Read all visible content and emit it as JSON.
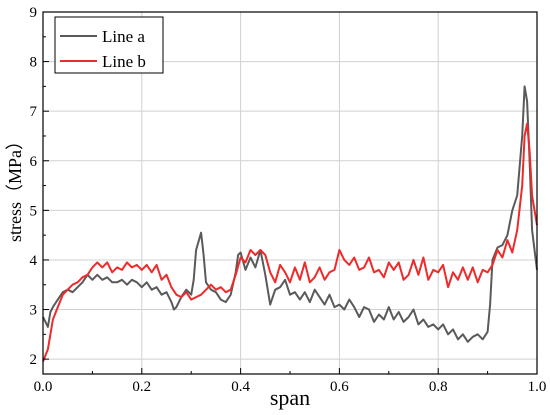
{
  "chart_data": {
    "type": "line",
    "xlabel": "span",
    "ylabel": "stress（MPa）",
    "xlim": [
      0.0,
      1.0
    ],
    "ylim": [
      1.7,
      9.0
    ],
    "x_ticks": [
      "0.0",
      "0.2",
      "0.4",
      "0.6",
      "0.8",
      "1.0"
    ],
    "y_ticks": [
      "2",
      "3",
      "4",
      "5",
      "6",
      "7",
      "8",
      "9"
    ],
    "grid": true,
    "legend_position": "top-left",
    "series": [
      {
        "name": "Line a",
        "color": "#5a5a5a",
        "points": [
          [
            0.0,
            2.85
          ],
          [
            0.005,
            2.75
          ],
          [
            0.01,
            2.65
          ],
          [
            0.015,
            2.95
          ],
          [
            0.02,
            3.05
          ],
          [
            0.03,
            3.2
          ],
          [
            0.04,
            3.35
          ],
          [
            0.05,
            3.4
          ],
          [
            0.06,
            3.35
          ],
          [
            0.07,
            3.45
          ],
          [
            0.08,
            3.55
          ],
          [
            0.09,
            3.7
          ],
          [
            0.1,
            3.6
          ],
          [
            0.11,
            3.7
          ],
          [
            0.12,
            3.6
          ],
          [
            0.13,
            3.65
          ],
          [
            0.14,
            3.55
          ],
          [
            0.15,
            3.55
          ],
          [
            0.16,
            3.6
          ],
          [
            0.17,
            3.5
          ],
          [
            0.18,
            3.6
          ],
          [
            0.19,
            3.55
          ],
          [
            0.2,
            3.45
          ],
          [
            0.21,
            3.55
          ],
          [
            0.22,
            3.4
          ],
          [
            0.23,
            3.45
          ],
          [
            0.24,
            3.3
          ],
          [
            0.25,
            3.35
          ],
          [
            0.26,
            3.15
          ],
          [
            0.265,
            3.0
          ],
          [
            0.27,
            3.05
          ],
          [
            0.28,
            3.25
          ],
          [
            0.29,
            3.4
          ],
          [
            0.3,
            3.3
          ],
          [
            0.305,
            3.6
          ],
          [
            0.31,
            4.2
          ],
          [
            0.32,
            4.55
          ],
          [
            0.325,
            4.1
          ],
          [
            0.33,
            3.55
          ],
          [
            0.34,
            3.4
          ],
          [
            0.35,
            3.35
          ],
          [
            0.36,
            3.2
          ],
          [
            0.37,
            3.15
          ],
          [
            0.38,
            3.3
          ],
          [
            0.39,
            3.75
          ],
          [
            0.395,
            4.1
          ],
          [
            0.4,
            4.15
          ],
          [
            0.41,
            3.8
          ],
          [
            0.42,
            4.05
          ],
          [
            0.43,
            3.85
          ],
          [
            0.44,
            4.2
          ],
          [
            0.45,
            3.7
          ],
          [
            0.46,
            3.1
          ],
          [
            0.47,
            3.4
          ],
          [
            0.48,
            3.45
          ],
          [
            0.49,
            3.6
          ],
          [
            0.5,
            3.3
          ],
          [
            0.51,
            3.35
          ],
          [
            0.52,
            3.2
          ],
          [
            0.53,
            3.35
          ],
          [
            0.54,
            3.15
          ],
          [
            0.55,
            3.4
          ],
          [
            0.56,
            3.25
          ],
          [
            0.57,
            3.1
          ],
          [
            0.58,
            3.3
          ],
          [
            0.59,
            3.05
          ],
          [
            0.6,
            3.1
          ],
          [
            0.61,
            3.0
          ],
          [
            0.62,
            3.2
          ],
          [
            0.63,
            3.05
          ],
          [
            0.64,
            2.85
          ],
          [
            0.65,
            3.05
          ],
          [
            0.66,
            3.0
          ],
          [
            0.67,
            2.75
          ],
          [
            0.68,
            2.9
          ],
          [
            0.69,
            2.8
          ],
          [
            0.7,
            3.05
          ],
          [
            0.71,
            2.8
          ],
          [
            0.72,
            2.95
          ],
          [
            0.73,
            2.75
          ],
          [
            0.74,
            2.85
          ],
          [
            0.75,
            3.0
          ],
          [
            0.76,
            2.7
          ],
          [
            0.77,
            2.8
          ],
          [
            0.78,
            2.65
          ],
          [
            0.79,
            2.7
          ],
          [
            0.8,
            2.6
          ],
          [
            0.81,
            2.7
          ],
          [
            0.82,
            2.5
          ],
          [
            0.83,
            2.6
          ],
          [
            0.84,
            2.4
          ],
          [
            0.85,
            2.5
          ],
          [
            0.86,
            2.35
          ],
          [
            0.87,
            2.45
          ],
          [
            0.88,
            2.5
          ],
          [
            0.89,
            2.4
          ],
          [
            0.9,
            2.55
          ],
          [
            0.905,
            3.1
          ],
          [
            0.91,
            4.0
          ],
          [
            0.92,
            4.25
          ],
          [
            0.93,
            4.3
          ],
          [
            0.94,
            4.5
          ],
          [
            0.95,
            5.0
          ],
          [
            0.96,
            5.3
          ],
          [
            0.97,
            6.5
          ],
          [
            0.975,
            7.5
          ],
          [
            0.98,
            7.2
          ],
          [
            0.985,
            6.0
          ],
          [
            0.99,
            4.6
          ],
          [
            1.0,
            3.8
          ]
        ]
      },
      {
        "name": "Line b",
        "color": "#ee2a2a",
        "points": [
          [
            0.0,
            1.95
          ],
          [
            0.01,
            2.2
          ],
          [
            0.02,
            2.8
          ],
          [
            0.03,
            3.05
          ],
          [
            0.04,
            3.3
          ],
          [
            0.05,
            3.4
          ],
          [
            0.06,
            3.5
          ],
          [
            0.07,
            3.55
          ],
          [
            0.08,
            3.65
          ],
          [
            0.09,
            3.7
          ],
          [
            0.1,
            3.85
          ],
          [
            0.11,
            3.95
          ],
          [
            0.12,
            3.85
          ],
          [
            0.13,
            3.95
          ],
          [
            0.14,
            3.75
          ],
          [
            0.15,
            3.85
          ],
          [
            0.16,
            3.8
          ],
          [
            0.17,
            3.95
          ],
          [
            0.18,
            3.85
          ],
          [
            0.19,
            3.9
          ],
          [
            0.2,
            3.8
          ],
          [
            0.21,
            3.9
          ],
          [
            0.22,
            3.75
          ],
          [
            0.23,
            3.9
          ],
          [
            0.24,
            3.6
          ],
          [
            0.25,
            3.7
          ],
          [
            0.26,
            3.45
          ],
          [
            0.27,
            3.3
          ],
          [
            0.28,
            3.25
          ],
          [
            0.29,
            3.35
          ],
          [
            0.3,
            3.2
          ],
          [
            0.31,
            3.25
          ],
          [
            0.32,
            3.3
          ],
          [
            0.33,
            3.4
          ],
          [
            0.34,
            3.5
          ],
          [
            0.35,
            3.4
          ],
          [
            0.36,
            3.45
          ],
          [
            0.37,
            3.35
          ],
          [
            0.38,
            3.4
          ],
          [
            0.39,
            3.7
          ],
          [
            0.4,
            4.05
          ],
          [
            0.41,
            3.95
          ],
          [
            0.42,
            4.2
          ],
          [
            0.43,
            4.1
          ],
          [
            0.44,
            4.2
          ],
          [
            0.45,
            4.1
          ],
          [
            0.46,
            3.75
          ],
          [
            0.47,
            3.55
          ],
          [
            0.48,
            3.9
          ],
          [
            0.49,
            3.75
          ],
          [
            0.5,
            3.55
          ],
          [
            0.51,
            3.85
          ],
          [
            0.52,
            3.6
          ],
          [
            0.53,
            3.95
          ],
          [
            0.54,
            3.55
          ],
          [
            0.55,
            3.65
          ],
          [
            0.56,
            3.85
          ],
          [
            0.57,
            3.6
          ],
          [
            0.58,
            3.75
          ],
          [
            0.59,
            3.8
          ],
          [
            0.6,
            4.2
          ],
          [
            0.61,
            4.0
          ],
          [
            0.62,
            3.9
          ],
          [
            0.63,
            4.05
          ],
          [
            0.64,
            3.8
          ],
          [
            0.65,
            3.85
          ],
          [
            0.66,
            4.05
          ],
          [
            0.67,
            3.75
          ],
          [
            0.68,
            3.8
          ],
          [
            0.69,
            3.65
          ],
          [
            0.7,
            3.95
          ],
          [
            0.71,
            3.8
          ],
          [
            0.72,
            3.95
          ],
          [
            0.73,
            3.6
          ],
          [
            0.74,
            3.7
          ],
          [
            0.75,
            4.0
          ],
          [
            0.76,
            3.7
          ],
          [
            0.77,
            4.05
          ],
          [
            0.78,
            3.6
          ],
          [
            0.79,
            3.8
          ],
          [
            0.8,
            3.75
          ],
          [
            0.81,
            3.9
          ],
          [
            0.82,
            3.45
          ],
          [
            0.83,
            3.75
          ],
          [
            0.84,
            3.6
          ],
          [
            0.85,
            3.85
          ],
          [
            0.86,
            3.6
          ],
          [
            0.87,
            3.85
          ],
          [
            0.88,
            3.55
          ],
          [
            0.89,
            3.8
          ],
          [
            0.9,
            3.75
          ],
          [
            0.91,
            3.9
          ],
          [
            0.92,
            4.2
          ],
          [
            0.93,
            4.05
          ],
          [
            0.94,
            4.4
          ],
          [
            0.95,
            4.15
          ],
          [
            0.96,
            4.6
          ],
          [
            0.97,
            5.5
          ],
          [
            0.975,
            6.5
          ],
          [
            0.98,
            6.75
          ],
          [
            0.985,
            6.2
          ],
          [
            0.99,
            5.3
          ],
          [
            1.0,
            4.7
          ]
        ]
      }
    ]
  }
}
